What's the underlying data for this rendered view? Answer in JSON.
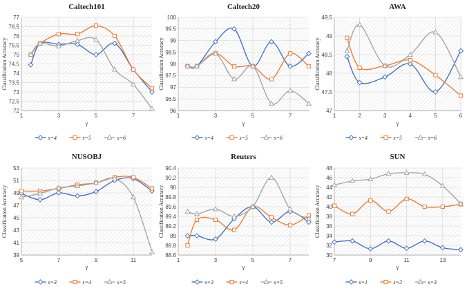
{
  "chart_data": [
    {
      "type": "line",
      "title": "Caltech101",
      "xlabel": "γ",
      "ylabel": "Classification Accuracy",
      "xlim": [
        1,
        8
      ],
      "xticks": [
        1,
        3,
        5,
        7
      ],
      "ylim": [
        72,
        77
      ],
      "yticks": [
        "72",
        "72.5",
        "73",
        "73.5",
        "74",
        "74.5",
        "75",
        "75.5",
        "76",
        "76.5",
        "77"
      ],
      "grid": true,
      "legend": "bottom",
      "series": [
        {
          "name": "s=4",
          "color": "#4472C4",
          "marker": "diamond",
          "x": [
            1.5,
            2,
            3,
            4,
            5,
            6,
            7,
            8
          ],
          "values": [
            74.45,
            75.6,
            75.55,
            75.55,
            75.0,
            75.6,
            74.2,
            73.0
          ]
        },
        {
          "name": "s=5",
          "color": "#ED7D31",
          "marker": "square",
          "x": [
            1.5,
            2,
            3,
            4,
            5,
            6,
            7,
            8
          ],
          "values": [
            75.0,
            75.6,
            76.1,
            76.1,
            76.55,
            76.0,
            74.2,
            73.2
          ]
        },
        {
          "name": "s=6",
          "color": "#A5A5A5",
          "marker": "triangle",
          "x": [
            1.5,
            2,
            3,
            4,
            5,
            6,
            7,
            8
          ],
          "values": [
            75.0,
            75.6,
            75.45,
            75.75,
            75.8,
            74.2,
            73.4,
            72.1
          ]
        }
      ]
    },
    {
      "type": "line",
      "title": "Caltech20",
      "xlabel": "γ",
      "ylabel": "Classification Accuracy",
      "xlim": [
        1,
        8
      ],
      "xticks": [
        1,
        3,
        5,
        7
      ],
      "ylim": [
        96,
        100
      ],
      "yticks": [
        "96",
        "96.5",
        "97",
        "97.5",
        "98",
        "98.5",
        "99",
        "99.5",
        "100"
      ],
      "grid": true,
      "legend": "bottom",
      "series": [
        {
          "name": "s=4",
          "color": "#4472C4",
          "marker": "diamond",
          "x": [
            1.5,
            2,
            3,
            4,
            5,
            6,
            7,
            8
          ],
          "values": [
            97.9,
            97.9,
            98.95,
            99.5,
            97.9,
            98.95,
            97.9,
            98.45
          ]
        },
        {
          "name": "s=5",
          "color": "#ED7D31",
          "marker": "square",
          "x": [
            1.5,
            2,
            3,
            4,
            5,
            6,
            7,
            8
          ],
          "values": [
            97.9,
            97.9,
            98.45,
            97.9,
            97.9,
            97.35,
            98.45,
            97.9
          ]
        },
        {
          "name": "s=6",
          "color": "#A5A5A5",
          "marker": "triangle",
          "x": [
            1.5,
            2,
            3,
            4,
            5,
            6,
            7,
            8
          ],
          "values": [
            97.9,
            97.9,
            98.45,
            97.35,
            97.9,
            96.3,
            96.85,
            96.3
          ]
        }
      ]
    },
    {
      "type": "line",
      "title": "AWA",
      "xlabel": "γ",
      "ylabel": "Classification Accuracy",
      "xlim": [
        1,
        6
      ],
      "xticks": [
        1,
        2,
        3,
        4,
        5,
        6
      ],
      "ylim": [
        47,
        49.5
      ],
      "yticks": [
        "47",
        "47.5",
        "48",
        "48.5",
        "49",
        "49.5"
      ],
      "grid": true,
      "legend": "bottom",
      "series": [
        {
          "name": "s=4",
          "color": "#4472C4",
          "marker": "diamond",
          "x": [
            1.5,
            2,
            3,
            4,
            5,
            6
          ],
          "values": [
            48.45,
            47.75,
            47.9,
            48.25,
            47.5,
            48.6
          ]
        },
        {
          "name": "s=5",
          "color": "#ED7D31",
          "marker": "square",
          "x": [
            1.5,
            2,
            3,
            4,
            5,
            6
          ],
          "values": [
            48.95,
            48.15,
            48.2,
            48.35,
            47.95,
            47.4
          ]
        },
        {
          "name": "s=6",
          "color": "#A5A5A5",
          "marker": "triangle",
          "x": [
            1.5,
            2,
            3,
            4,
            5,
            6
          ],
          "values": [
            48.6,
            49.3,
            48.2,
            48.5,
            49.1,
            47.9
          ]
        }
      ]
    },
    {
      "type": "line",
      "title": "NUSOBJ",
      "xlabel": "γ",
      "ylabel": "Classification Accuracy",
      "xlim": [
        5,
        12
      ],
      "xticks": [
        5,
        7,
        9,
        11
      ],
      "ylim": [
        39,
        53
      ],
      "yticks": [
        "39",
        "41",
        "43",
        "45",
        "47",
        "49",
        "51",
        "53"
      ],
      "grid": true,
      "legend": "bottom",
      "series": [
        {
          "name": "s=3",
          "color": "#4472C4",
          "marker": "diamond",
          "x": [
            5,
            6,
            7,
            8,
            9,
            10,
            11,
            12
          ],
          "values": [
            48.9,
            47.9,
            49.0,
            48.5,
            49.2,
            51.0,
            51.3,
            49.3
          ]
        },
        {
          "name": "s=4",
          "color": "#ED7D31",
          "marker": "square",
          "x": [
            5,
            6,
            7,
            8,
            9,
            10,
            11,
            12
          ],
          "values": [
            49.3,
            49.3,
            49.7,
            50.3,
            50.6,
            51.5,
            51.5,
            49.7
          ]
        },
        {
          "name": "s=5",
          "color": "#A5A5A5",
          "marker": "triangle",
          "x": [
            5,
            6,
            7,
            8,
            9,
            10,
            11,
            12
          ],
          "values": [
            48.3,
            48.9,
            49.8,
            50.1,
            50.6,
            51.3,
            48.3,
            39.5
          ]
        }
      ]
    },
    {
      "type": "line",
      "title": "Reuters",
      "xlabel": "γ",
      "ylabel": "Classification Accuracy",
      "xlim": [
        1,
        8
      ],
      "xticks": [
        1,
        3,
        5,
        7
      ],
      "ylim": [
        88.6,
        90.4
      ],
      "yticks": [
        "88.6",
        "88.8",
        "89",
        "89.2",
        "89.4",
        "89.6",
        "89.8",
        "90",
        "90.2",
        "90.4"
      ],
      "grid": true,
      "legend": "bottom",
      "series": [
        {
          "name": "s=3",
          "color": "#4472C4",
          "marker": "diamond",
          "x": [
            1.5,
            2,
            3,
            4,
            5,
            6,
            7,
            8
          ],
          "values": [
            89.0,
            89.0,
            88.93,
            89.35,
            89.6,
            89.28,
            89.5,
            89.28
          ]
        },
        {
          "name": "s=4",
          "color": "#ED7D31",
          "marker": "square",
          "x": [
            1.5,
            2,
            3,
            4,
            5,
            6,
            7,
            8
          ],
          "values": [
            88.8,
            89.33,
            89.33,
            89.12,
            89.6,
            89.38,
            89.22,
            89.42
          ]
        },
        {
          "name": "s=5",
          "color": "#A5A5A5",
          "marker": "triangle",
          "x": [
            1.5,
            2,
            3,
            4,
            5,
            6,
            7,
            8
          ],
          "values": [
            89.5,
            89.45,
            89.55,
            89.4,
            89.6,
            90.2,
            89.55,
            89.35
          ]
        }
      ]
    },
    {
      "type": "line",
      "title": "SUN",
      "xlabel": "γ",
      "ylabel": "Classification Accuracy",
      "xlim": [
        7,
        14
      ],
      "xticks": [
        7,
        9,
        11,
        13
      ],
      "ylim": [
        30,
        48
      ],
      "yticks": [
        "30",
        "32",
        "34",
        "36",
        "38",
        "40",
        "42",
        "44",
        "46",
        "48"
      ],
      "grid": true,
      "legend": "bottom",
      "series": [
        {
          "name": "s=1",
          "color": "#4472C4",
          "marker": "diamond",
          "x": [
            7,
            8,
            9,
            10,
            11,
            12,
            13,
            14
          ],
          "values": [
            32.7,
            32.9,
            31.3,
            32.9,
            31.4,
            32.9,
            31.5,
            31.1
          ]
        },
        {
          "name": "s=2",
          "color": "#ED7D31",
          "marker": "square",
          "x": [
            7,
            8,
            9,
            10,
            11,
            12,
            13,
            14
          ],
          "values": [
            40.2,
            38.5,
            41.3,
            39.0,
            41.6,
            40.0,
            40.0,
            40.5
          ]
        },
        {
          "name": "s=3",
          "color": "#A5A5A5",
          "marker": "triangle",
          "x": [
            7,
            8,
            9,
            10,
            11,
            12,
            13,
            14
          ],
          "values": [
            44.5,
            45.3,
            45.7,
            46.8,
            47.0,
            46.7,
            44.3,
            40.6
          ]
        }
      ]
    }
  ]
}
